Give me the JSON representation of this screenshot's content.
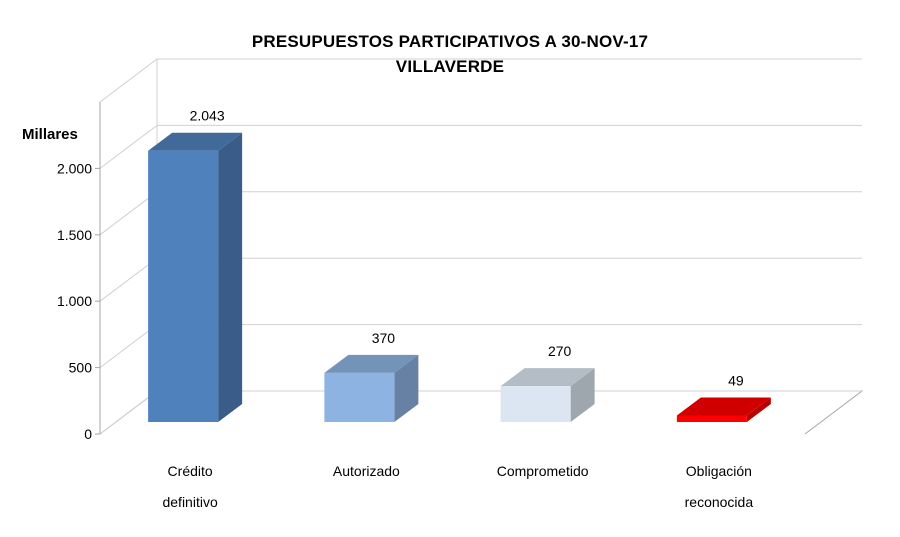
{
  "chart_data": {
    "type": "bar",
    "title": "PRESUPUESTOS PARTICIPATIVOS A 30-NOV-17",
    "subtitle": "VILLAVERDE",
    "ylabel": "Millares",
    "xlabel": "",
    "ylim": [
      0,
      2500
    ],
    "yticks": [
      0,
      500,
      1000,
      1500,
      2000
    ],
    "ytick_labels": [
      "0",
      "500",
      "1.000",
      "1.500",
      "2.000"
    ],
    "grid": true,
    "legend": "none",
    "categories": [
      [
        "Crédito",
        "definitivo"
      ],
      [
        "Autorizado"
      ],
      [
        "Comprometido"
      ],
      [
        "Obligación",
        "reconocida"
      ]
    ],
    "values": [
      2043,
      370,
      270,
      49
    ],
    "value_labels": [
      "2.043",
      "370",
      "270",
      "49"
    ],
    "colors": [
      "#4f81bd",
      "#8db3e2",
      "#dce6f2",
      "#ff0000"
    ]
  }
}
